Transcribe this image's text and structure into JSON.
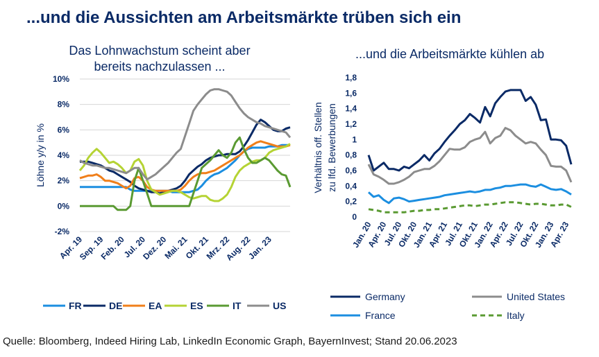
{
  "title": "...und die Aussichten am Arbeitsmärkte trüben sich ein",
  "source": "Quelle: Bloomberg, Indeed Hiring Lab, LinkedIn Economic Graph, BayernInvest; Stand 20.06.2023",
  "chart_data": [
    {
      "type": "line",
      "title": "Das Lohnwachstum scheint aber bereits nachzulassen ...",
      "xlabel": "",
      "ylabel": "Löhne y/y in %",
      "ylim": [
        -2,
        10
      ],
      "yticks": [
        "10%",
        "8%",
        "6%",
        "4%",
        "2%",
        "0%",
        "-2%"
      ],
      "xticks": [
        "Apr. 19",
        "Sep. 19",
        "Feb. 20",
        "Jul. 20",
        "Dez. 20",
        "Mai. 21",
        "Okt. 21",
        "Mrz. 22",
        "Aug. 22",
        "Jan. 23"
      ],
      "grid": true,
      "legend": "bottom",
      "x_start": "2019-04",
      "x_end": "2023-06",
      "series": [
        {
          "name": "FR",
          "color": "#1b8ee0",
          "values": [
            1.5,
            1.5,
            1.5,
            1.5,
            1.5,
            1.5,
            1.5,
            1.5,
            1.5,
            1.5,
            1.5,
            1.5,
            1.3,
            1.2,
            1.2,
            1.2,
            1.2,
            1.2,
            1.2,
            1.2,
            1.2,
            1.2,
            1.1,
            1.1,
            1.1,
            1.1,
            1.1,
            1.2,
            1.3,
            1.6,
            2.0,
            2.3,
            2.5,
            2.6,
            2.8,
            3.0,
            3.3,
            3.6,
            4.0,
            4.3,
            4.5,
            4.6,
            4.6,
            4.6,
            4.6,
            4.7,
            4.7,
            4.7,
            4.8,
            4.8,
            4.8
          ]
        },
        {
          "name": "DE",
          "color": "#0a2a66",
          "values": [
            3.5,
            3.5,
            3.5,
            3.4,
            3.3,
            3.2,
            3.0,
            2.8,
            2.7,
            2.5,
            2.3,
            2.1,
            1.9,
            1.6,
            1.4,
            1.3,
            1.2,
            1.1,
            1.1,
            1.0,
            1.1,
            1.2,
            1.3,
            1.4,
            1.6,
            2.0,
            2.5,
            2.8,
            3.1,
            3.3,
            3.6,
            3.8,
            3.9,
            4.0,
            4.0,
            4.1,
            4.1,
            4.1,
            4.3,
            4.7,
            5.2,
            5.8,
            6.4,
            6.8,
            6.6,
            6.3,
            6.0,
            5.9,
            5.9,
            6.1,
            6.2
          ]
        },
        {
          "name": "EA",
          "color": "#f07f1a",
          "values": [
            2.2,
            2.3,
            2.4,
            2.4,
            2.5,
            2.3,
            2.0,
            2.0,
            1.9,
            1.8,
            1.6,
            1.4,
            1.6,
            2.2,
            2.3,
            2.0,
            1.5,
            1.3,
            1.2,
            1.2,
            1.2,
            1.2,
            1.2,
            1.2,
            1.3,
            1.6,
            2.0,
            2.3,
            2.5,
            2.6,
            2.6,
            2.7,
            2.8,
            3.0,
            3.2,
            3.4,
            3.6,
            3.8,
            4.0,
            4.3,
            4.6,
            4.8,
            5.0,
            5.1,
            5.0,
            4.9,
            4.8,
            4.7,
            4.7,
            4.7,
            4.8
          ]
        },
        {
          "name": "ES",
          "color": "#b5d334",
          "values": [
            2.8,
            3.2,
            3.8,
            4.2,
            4.5,
            4.2,
            3.8,
            3.4,
            3.5,
            3.3,
            3.0,
            2.6,
            2.8,
            3.5,
            3.7,
            3.2,
            2.0,
            1.3,
            1.1,
            0.9,
            1.0,
            1.1,
            1.2,
            1.2,
            1.1,
            0.9,
            0.7,
            0.6,
            0.7,
            0.8,
            0.8,
            0.5,
            0.4,
            0.4,
            0.6,
            0.9,
            1.5,
            2.3,
            2.8,
            3.1,
            3.3,
            3.5,
            3.6,
            3.6,
            3.8,
            4.2,
            4.4,
            4.5,
            4.6,
            4.7,
            4.9
          ]
        },
        {
          "name": "IT",
          "color": "#5a9a32",
          "values": [
            0.0,
            0.0,
            0.0,
            0.0,
            0.0,
            0.0,
            0.0,
            0.0,
            0.0,
            -0.3,
            -0.3,
            -0.3,
            0.0,
            2.0,
            3.0,
            2.0,
            1.0,
            0.0,
            0.0,
            0.0,
            0.0,
            0.0,
            0.0,
            0.0,
            0.0,
            0.0,
            0.0,
            1.0,
            2.0,
            3.0,
            3.3,
            3.6,
            4.0,
            4.4,
            4.0,
            3.8,
            4.2,
            5.0,
            5.4,
            4.5,
            3.8,
            3.4,
            3.4,
            3.6,
            3.8,
            3.6,
            3.2,
            2.8,
            2.5,
            2.4,
            1.5
          ]
        },
        {
          "name": "US",
          "color": "#8c8c8c",
          "values": [
            3.6,
            3.4,
            3.3,
            3.2,
            3.2,
            3.1,
            3.0,
            3.0,
            2.9,
            2.8,
            2.7,
            2.6,
            2.8,
            3.0,
            3.0,
            2.5,
            2.1,
            2.3,
            2.5,
            2.8,
            3.1,
            3.4,
            3.8,
            4.2,
            4.5,
            5.5,
            6.5,
            7.5,
            8.0,
            8.4,
            8.8,
            9.1,
            9.2,
            9.2,
            9.1,
            9.0,
            8.7,
            8.2,
            7.7,
            7.3,
            7.0,
            6.8,
            6.6,
            6.5,
            6.3,
            6.2,
            6.1,
            6.0,
            5.9,
            5.8,
            5.4
          ]
        }
      ]
    },
    {
      "type": "line",
      "title": "...und die Arbeitsmärkte kühlen ab",
      "xlabel": "",
      "ylabel": "Verhältnis off. Stellen zu lfd. Bewerbungen",
      "ylim": [
        0,
        1.8
      ],
      "yticks": [
        "1,8",
        "1,6",
        "1,4",
        "1,2",
        "1",
        "0,8",
        "0,6",
        "0,4",
        "0,2",
        "0"
      ],
      "xticks": [
        "Jan. 20",
        "Apr. 20",
        "Jul. 20",
        "Okt. 20",
        "Jan. 21",
        "Apr. 21",
        "Jul. 21",
        "Okt. 21",
        "Jan. 22",
        "Apr. 22",
        "Jul. 22",
        "Okt. 22",
        "Jan. 23",
        "Apr. 23"
      ],
      "grid": false,
      "legend": "bottom",
      "x_start": "2020-01",
      "x_end": "2023-05",
      "series": [
        {
          "name": "Germany",
          "color": "#0a2a66",
          "dash": false,
          "values": [
            0.8,
            0.6,
            0.65,
            0.7,
            0.62,
            0.62,
            0.6,
            0.65,
            0.63,
            0.68,
            0.73,
            0.8,
            0.73,
            0.82,
            0.88,
            0.97,
            1.05,
            1.12,
            1.2,
            1.25,
            1.33,
            1.28,
            1.22,
            1.42,
            1.3,
            1.47,
            1.55,
            1.62,
            1.64,
            1.64,
            1.64,
            1.5,
            1.55,
            1.45,
            1.25,
            1.26,
            1.0,
            1.0,
            0.99,
            0.92,
            0.68
          ]
        },
        {
          "name": "United States",
          "color": "#8c8c8c",
          "dash": false,
          "values": [
            0.68,
            0.55,
            0.52,
            0.48,
            0.43,
            0.43,
            0.45,
            0.48,
            0.52,
            0.58,
            0.6,
            0.62,
            0.62,
            0.66,
            0.72,
            0.8,
            0.88,
            0.87,
            0.87,
            0.9,
            0.97,
            1.0,
            1.02,
            1.1,
            0.95,
            1.02,
            1.05,
            1.15,
            1.12,
            1.05,
            1.0,
            0.95,
            0.97,
            0.95,
            0.87,
            0.8,
            0.66,
            0.65,
            0.65,
            0.6,
            0.45
          ]
        },
        {
          "name": "France",
          "color": "#1b8ee0",
          "dash": false,
          "values": [
            0.32,
            0.26,
            0.28,
            0.22,
            0.18,
            0.24,
            0.25,
            0.23,
            0.2,
            0.21,
            0.22,
            0.23,
            0.24,
            0.25,
            0.26,
            0.28,
            0.29,
            0.3,
            0.31,
            0.32,
            0.33,
            0.32,
            0.33,
            0.35,
            0.35,
            0.37,
            0.38,
            0.4,
            0.4,
            0.41,
            0.42,
            0.42,
            0.4,
            0.39,
            0.42,
            0.39,
            0.36,
            0.35,
            0.36,
            0.33,
            0.29
          ]
        },
        {
          "name": "Italy",
          "color": "#5a9a32",
          "dash": true,
          "values": [
            0.1,
            0.09,
            0.08,
            0.06,
            0.06,
            0.06,
            0.06,
            0.06,
            0.07,
            0.08,
            0.08,
            0.09,
            0.09,
            0.1,
            0.1,
            0.11,
            0.12,
            0.13,
            0.14,
            0.15,
            0.15,
            0.14,
            0.15,
            0.16,
            0.16,
            0.17,
            0.18,
            0.19,
            0.19,
            0.19,
            0.18,
            0.17,
            0.16,
            0.17,
            0.17,
            0.16,
            0.15,
            0.15,
            0.16,
            0.16,
            0.13
          ]
        }
      ]
    }
  ]
}
